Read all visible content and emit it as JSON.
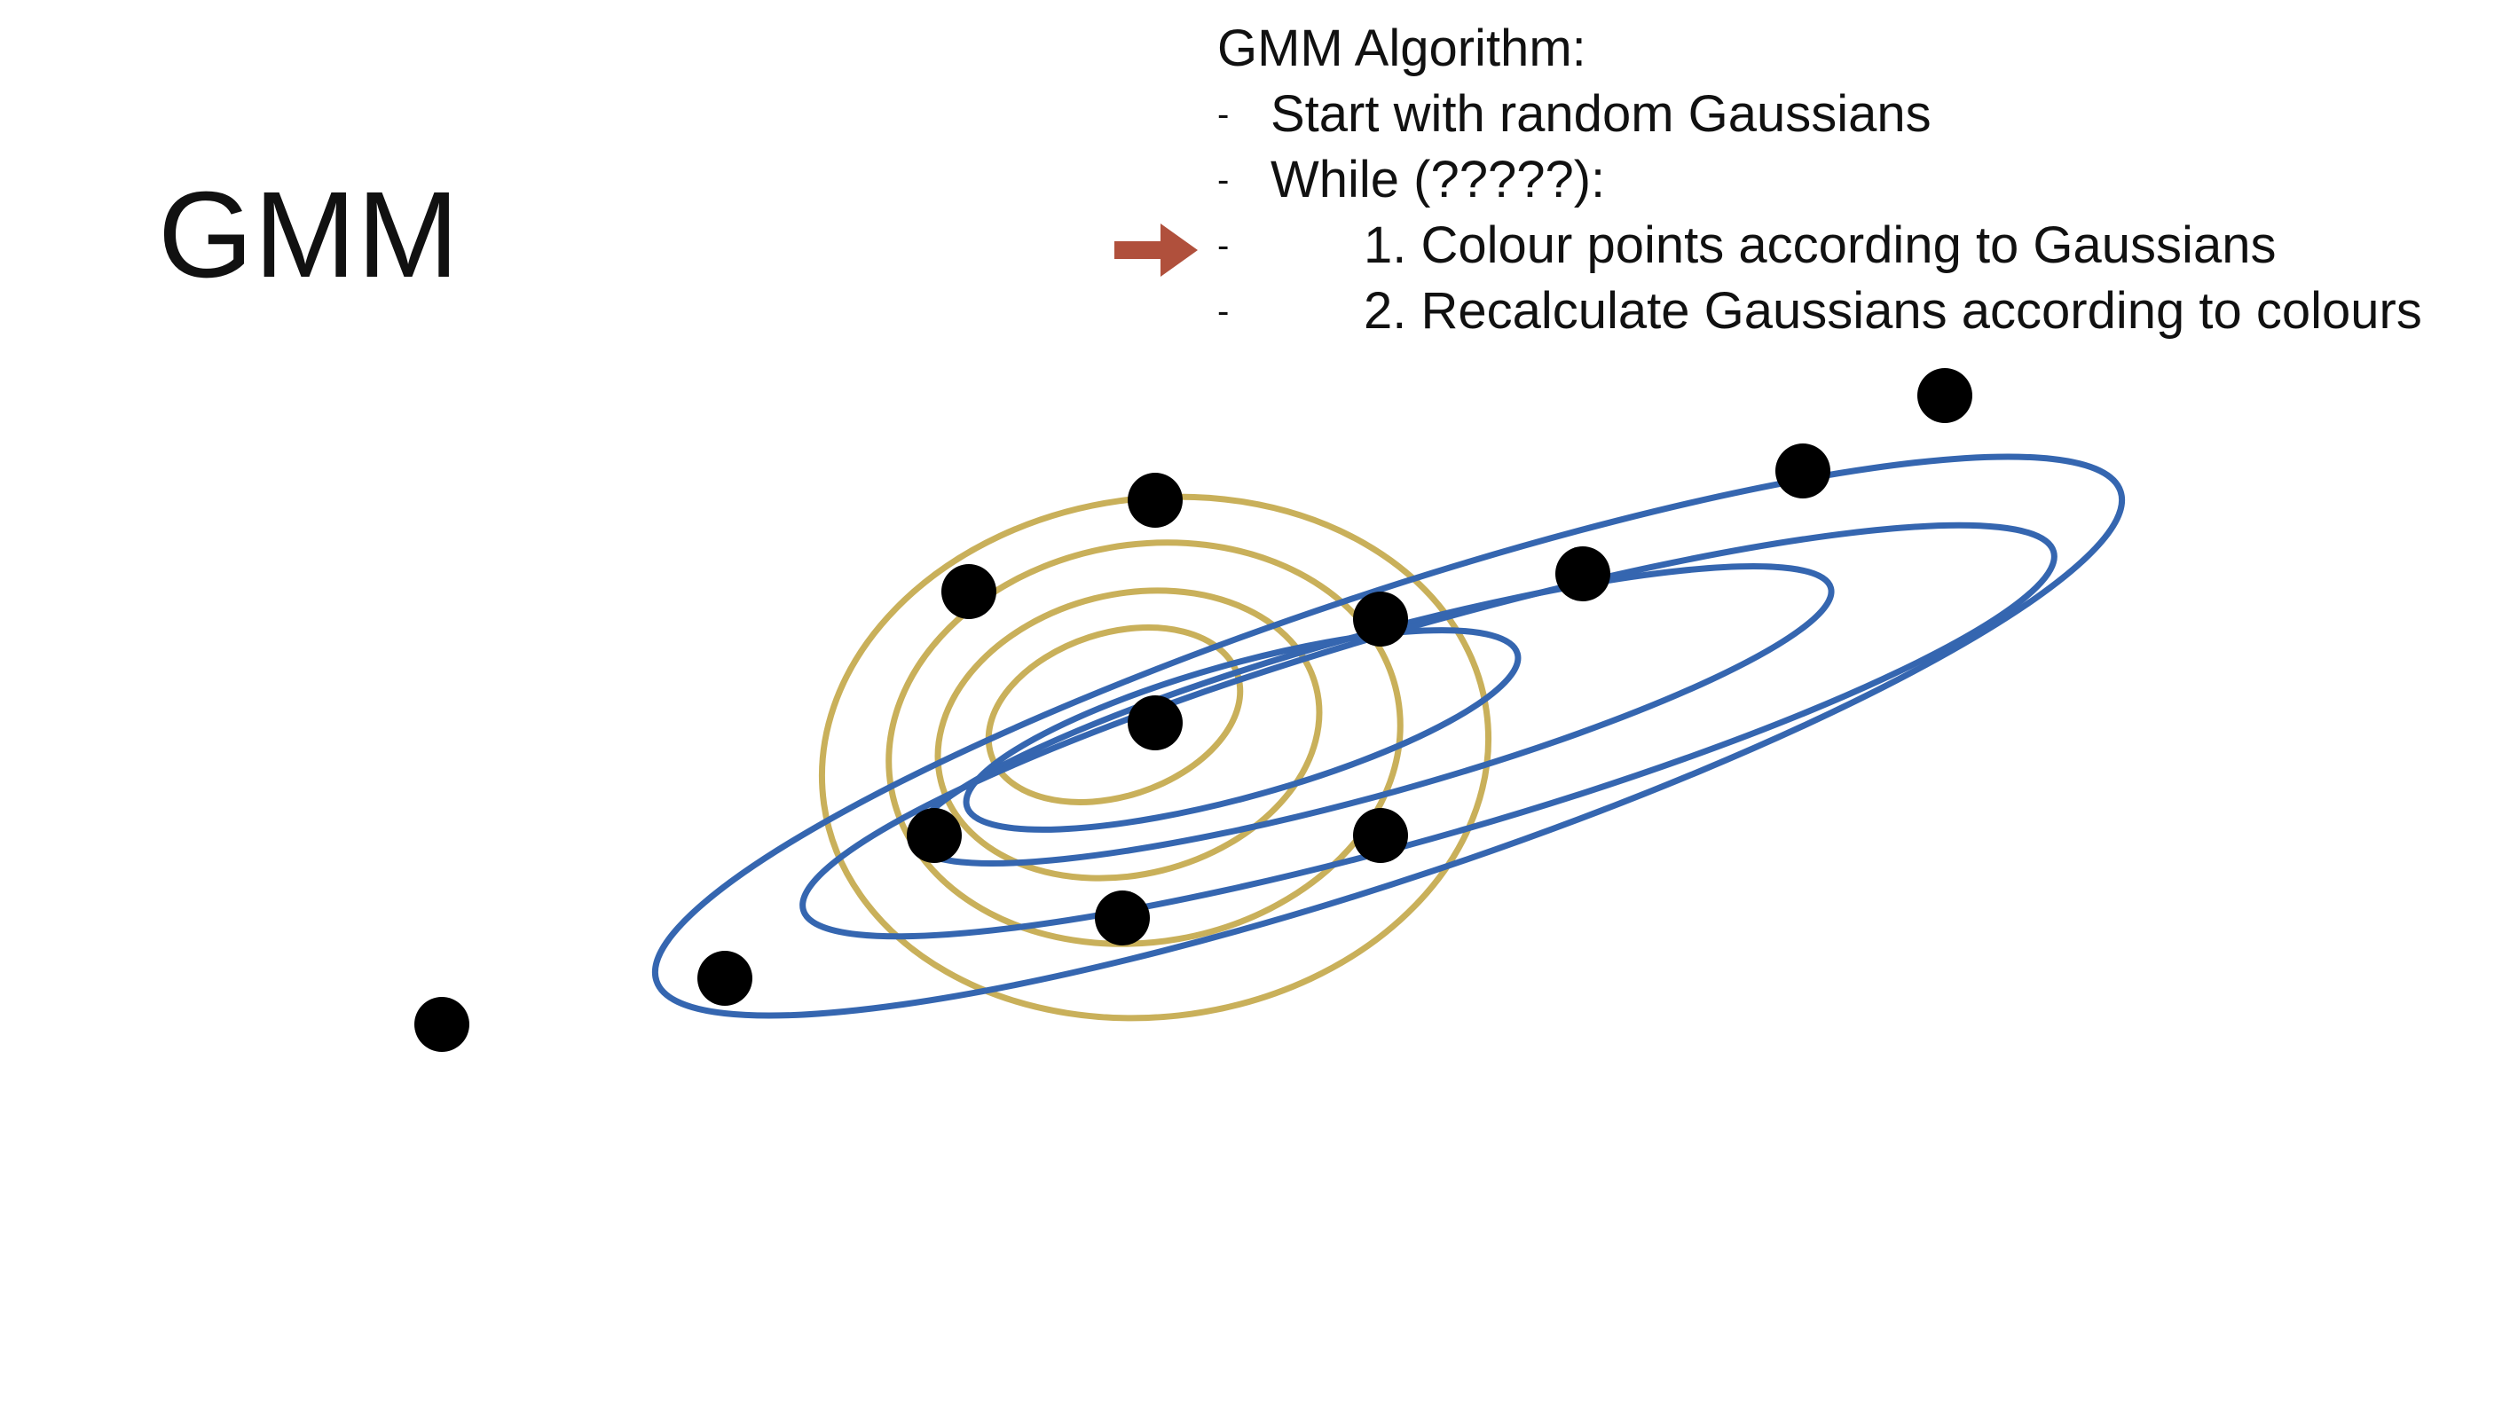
{
  "slide": {
    "title": "GMM"
  },
  "algorithm": {
    "heading": "GMM Algorithm:",
    "bullet": "-",
    "steps": [
      {
        "text": "Start with random Gaussians",
        "indent": false,
        "current": false
      },
      {
        "text": "While (?????):",
        "indent": false,
        "current": false
      },
      {
        "text": "1. Colour points according to Gaussians",
        "indent": true,
        "current": true
      },
      {
        "text": "2. Recalculate Gaussians according to colours",
        "indent": true,
        "current": false
      }
    ]
  },
  "colors": {
    "arrow": "#b0503c",
    "yellow_gaussian": "#c9b05a",
    "blue_gaussian": "#3566b0",
    "points": "#000000",
    "text": "#111111"
  },
  "icons": {
    "current_step_marker": "right-arrow-icon"
  }
}
